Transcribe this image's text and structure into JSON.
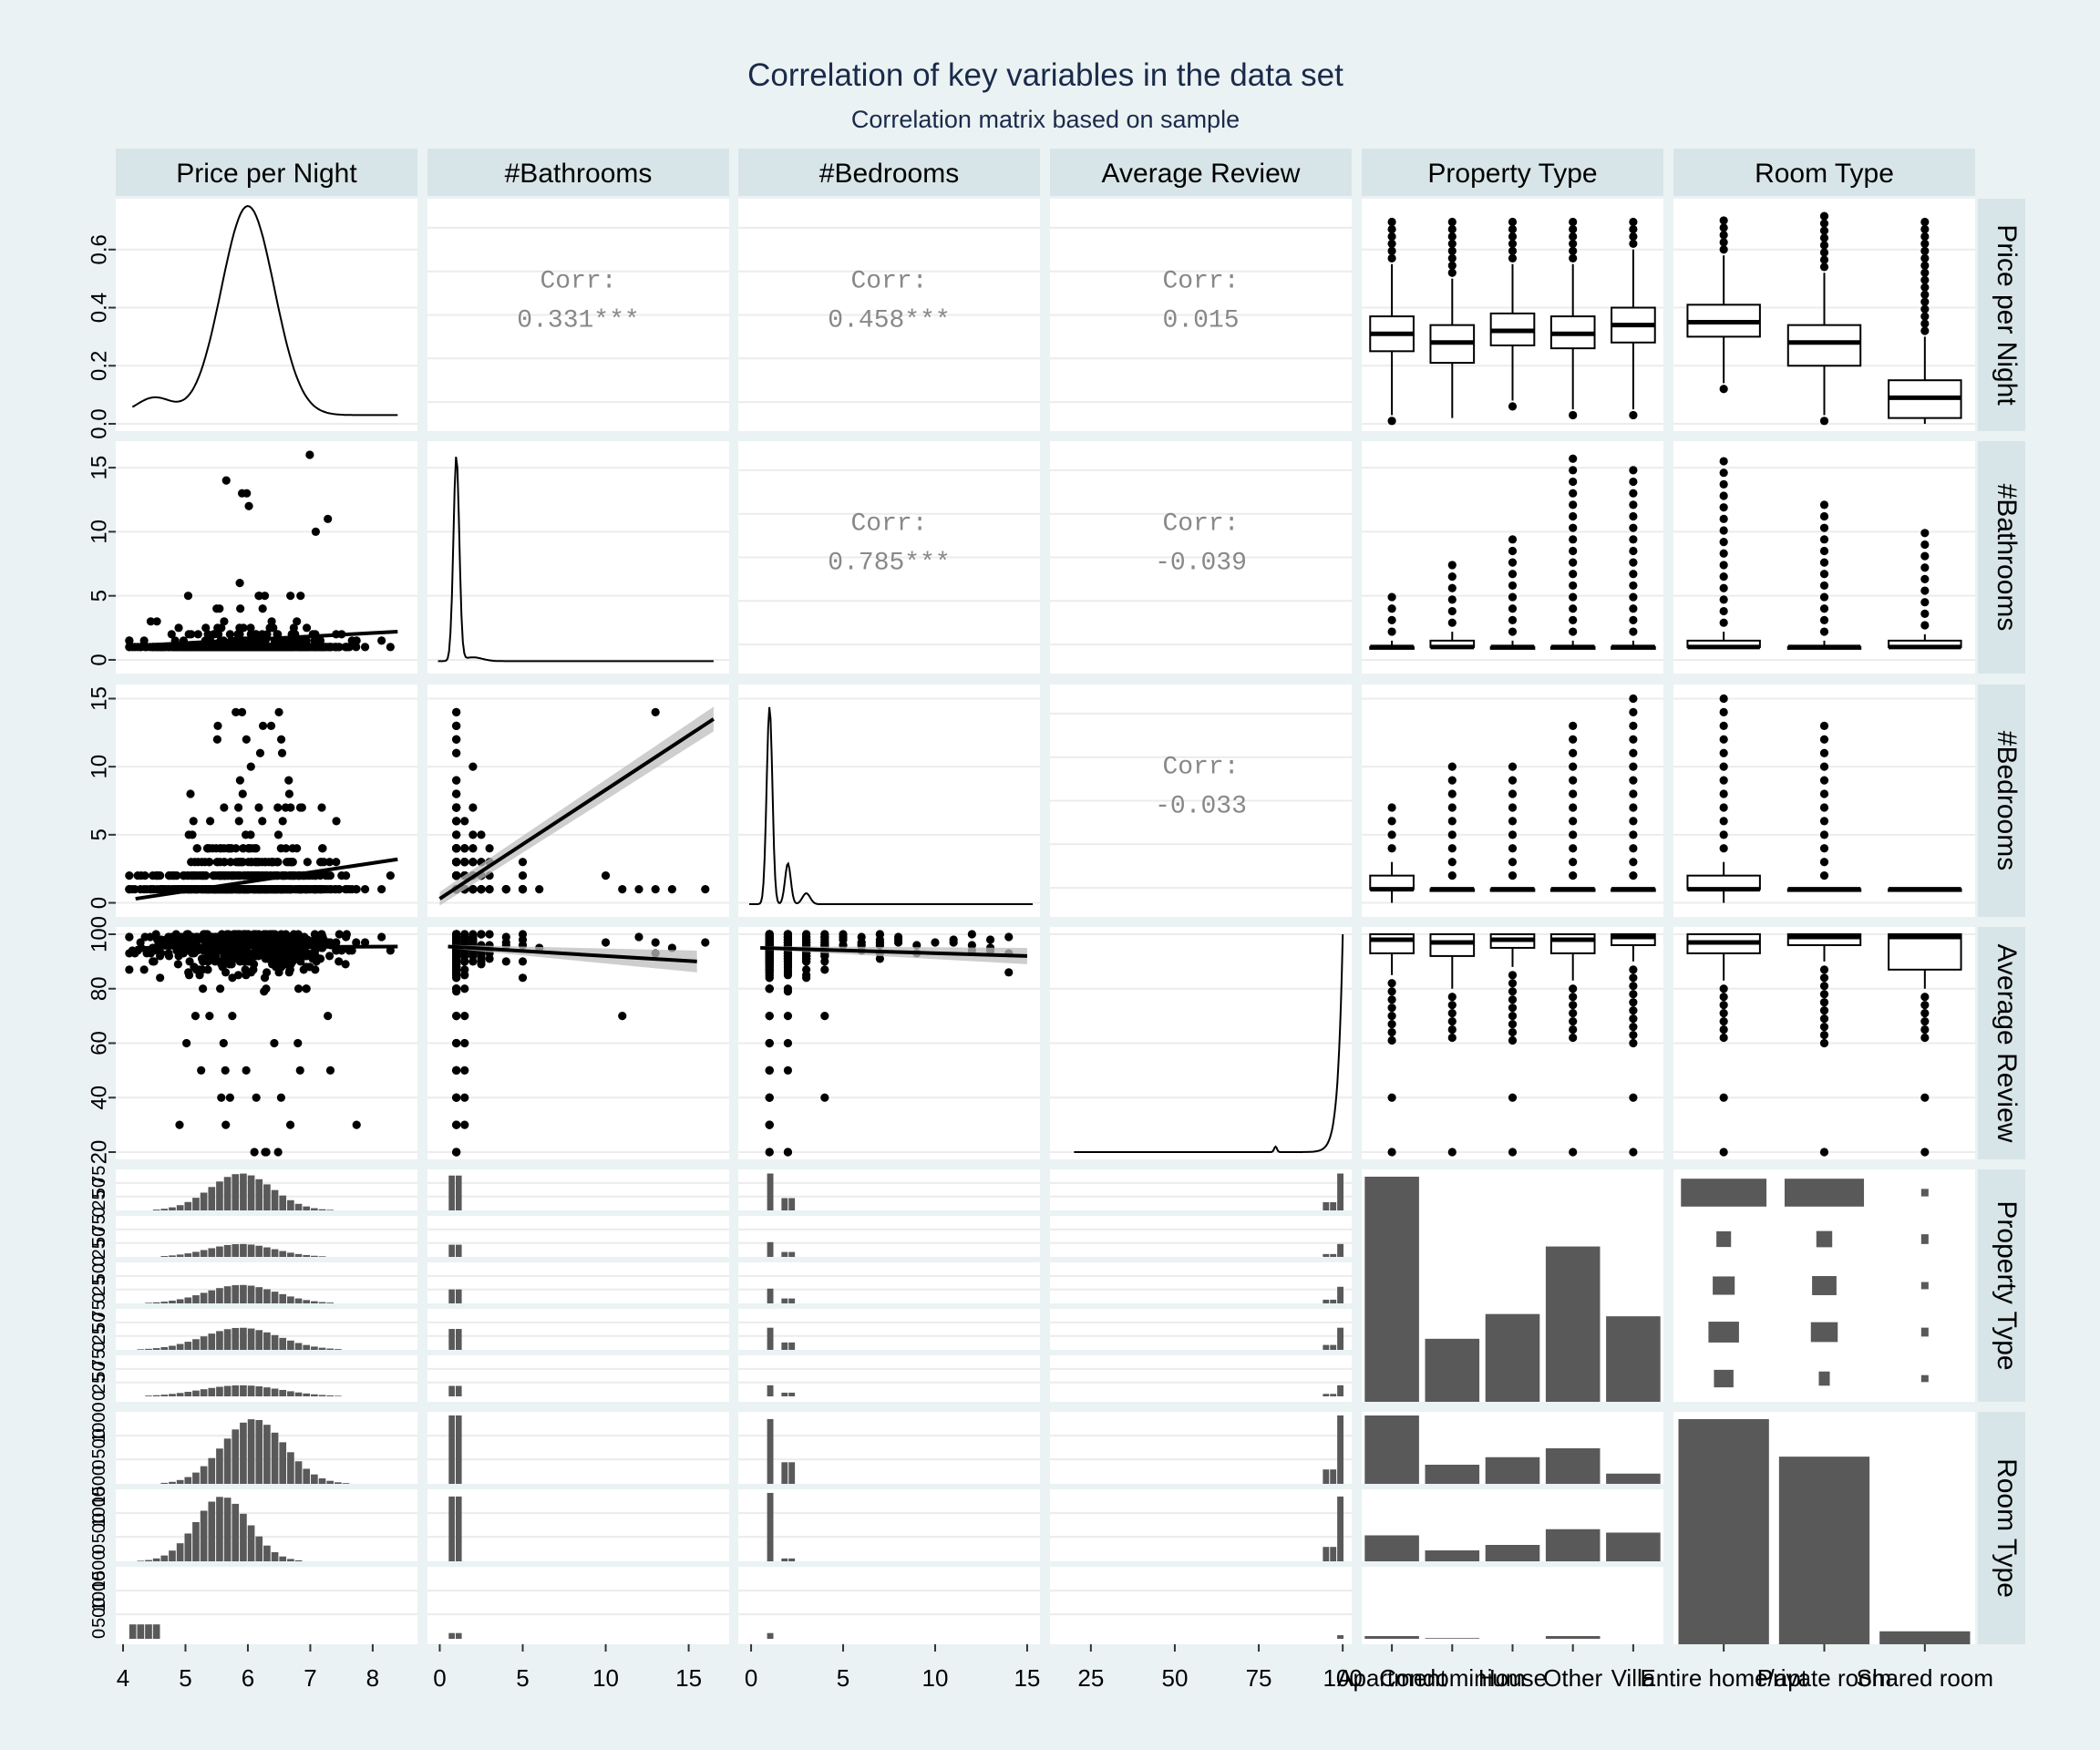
{
  "chart_data": {
    "type": "scatter-matrix",
    "title": "Correlation of key variables in the data set",
    "subtitle": "Correlation matrix based on sample",
    "variables": [
      "Price per Night",
      "#Bathrooms",
      "#Bedrooms",
      "Average Review",
      "Property Type",
      "Room Type"
    ],
    "correlation_label": "Corr:",
    "correlations": [
      {
        "row": 0,
        "col": 1,
        "value": "0.331***"
      },
      {
        "row": 0,
        "col": 2,
        "value": "0.458***"
      },
      {
        "row": 0,
        "col": 3,
        "value": "0.015"
      },
      {
        "row": 1,
        "col": 2,
        "value": "0.785***"
      },
      {
        "row": 1,
        "col": 3,
        "value": "-0.039"
      },
      {
        "row": 2,
        "col": 3,
        "value": "-0.033"
      }
    ],
    "x_axis_ticks": [
      [
        "4",
        "5",
        "6",
        "7",
        "8"
      ],
      [
        "0",
        "5",
        "10",
        "15"
      ],
      [
        "0",
        "5",
        "10",
        "15"
      ],
      [
        "25",
        "50",
        "75",
        "100"
      ],
      [
        "Apartment",
        "Condominium",
        "House",
        "Other",
        "Villa"
      ],
      [
        "Entire home/apt",
        "Private room",
        "Shared room"
      ]
    ],
    "y_axis_ticks": [
      [
        "0.0",
        "0.2",
        "0.4",
        "0.6"
      ],
      [
        "0",
        "5",
        "10",
        "15"
      ],
      [
        "0",
        "5",
        "10",
        "15"
      ],
      [
        "20",
        "40",
        "60",
        "80",
        "100"
      ],
      [
        "0",
        "25",
        "50",
        "75",
        "0",
        "25",
        "50",
        "75",
        "0",
        "25",
        "50",
        "0",
        "25",
        "50",
        "75",
        "0",
        "25",
        "50",
        "75"
      ],
      [
        "0",
        "500",
        "1000",
        "1500",
        "0",
        "500",
        "1000",
        "1500",
        "0",
        "500",
        "1000"
      ]
    ],
    "x_range": {
      "price": [
        4,
        8.6
      ],
      "bathrooms": [
        -0.3,
        17
      ],
      "bedrooms": [
        -0.3,
        15.3
      ],
      "review": [
        15,
        100.5
      ]
    },
    "y_range": {
      "price_density": [
        0,
        0.75
      ],
      "bathrooms": [
        -0.5,
        16.5
      ],
      "bedrooms": [
        -0.5,
        15.5
      ],
      "review": [
        20,
        100
      ]
    },
    "property_type_counts": [
      1000,
      280,
      390,
      690,
      380
    ],
    "room_type_counts": [
      1650,
      1375,
      95
    ],
    "property_by_room_counts": [
      [
        700,
        650,
        10
      ],
      [
        120,
        130,
        28
      ],
      [
        180,
        200,
        8
      ],
      [
        250,
        220,
        20
      ],
      [
        160,
        90,
        7
      ]
    ],
    "price_box_by_property": [
      {
        "q1": 0.25,
        "med": 0.31,
        "q3": 0.37,
        "lw": 0.03,
        "uw": 0.55
      },
      {
        "q1": 0.21,
        "med": 0.28,
        "q3": 0.34,
        "lw": 0.02,
        "uw": 0.5
      },
      {
        "q1": 0.27,
        "med": 0.32,
        "q3": 0.38,
        "lw": 0.08,
        "uw": 0.55
      },
      {
        "q1": 0.26,
        "med": 0.31,
        "q3": 0.37,
        "lw": 0.05,
        "uw": 0.55
      },
      {
        "q1": 0.28,
        "med": 0.34,
        "q3": 0.4,
        "lw": 0.05,
        "uw": 0.6
      }
    ],
    "price_box_by_room": [
      {
        "q1": 0.3,
        "med": 0.35,
        "q3": 0.41,
        "lw": 0.14,
        "uw": 0.58
      },
      {
        "q1": 0.2,
        "med": 0.28,
        "q3": 0.34,
        "lw": 0.03,
        "uw": 0.52
      },
      {
        "q1": 0.02,
        "med": 0.09,
        "q3": 0.15,
        "lw": 0.0,
        "uw": 0.3
      }
    ],
    "bath_box_by_property": [
      {
        "q1": 1,
        "med": 1,
        "q3": 1,
        "lw": 1,
        "uw": 1.5
      },
      {
        "q1": 1,
        "med": 1,
        "q3": 1.5,
        "lw": 1,
        "uw": 2.2
      },
      {
        "q1": 1,
        "med": 1,
        "q3": 1,
        "lw": 1,
        "uw": 1.5
      },
      {
        "q1": 1,
        "med": 1,
        "q3": 1,
        "lw": 1,
        "uw": 1.5
      },
      {
        "q1": 1,
        "med": 1,
        "q3": 1,
        "lw": 1,
        "uw": 1.5
      }
    ],
    "bath_box_by_room": [
      {
        "q1": 1,
        "med": 1,
        "q3": 1.5,
        "lw": 1,
        "uw": 2.2
      },
      {
        "q1": 1,
        "med": 1,
        "q3": 1,
        "lw": 1,
        "uw": 1.5
      },
      {
        "q1": 1,
        "med": 1,
        "q3": 1.5,
        "lw": 1,
        "uw": 2
      }
    ],
    "bed_box_by_property": [
      {
        "q1": 1,
        "med": 1,
        "q3": 2,
        "lw": 0,
        "uw": 3
      },
      {
        "q1": 1,
        "med": 1,
        "q3": 1,
        "lw": 1,
        "uw": 1
      },
      {
        "q1": 1,
        "med": 1,
        "q3": 1,
        "lw": 1,
        "uw": 1
      },
      {
        "q1": 1,
        "med": 1,
        "q3": 1,
        "lw": 1,
        "uw": 1
      },
      {
        "q1": 1,
        "med": 1,
        "q3": 1,
        "lw": 1,
        "uw": 1
      }
    ],
    "bed_box_by_room": [
      {
        "q1": 1,
        "med": 1,
        "q3": 2,
        "lw": 0,
        "uw": 3
      },
      {
        "q1": 1,
        "med": 1,
        "q3": 1,
        "lw": 1,
        "uw": 1
      },
      {
        "q1": 1,
        "med": 1,
        "q3": 1,
        "lw": 1,
        "uw": 1
      }
    ],
    "review_box_by_property": [
      {
        "q1": 93,
        "med": 98,
        "q3": 100,
        "lw": 85,
        "uw": 100
      },
      {
        "q1": 92,
        "med": 97,
        "q3": 100,
        "lw": 80,
        "uw": 100
      },
      {
        "q1": 95,
        "med": 98,
        "q3": 100,
        "lw": 88,
        "uw": 100
      },
      {
        "q1": 93,
        "med": 98,
        "q3": 100,
        "lw": 83,
        "uw": 100
      },
      {
        "q1": 96,
        "med": 99,
        "q3": 100,
        "lw": 90,
        "uw": 100
      }
    ],
    "review_box_by_room": [
      {
        "q1": 93,
        "med": 97,
        "q3": 100,
        "lw": 83,
        "uw": 100
      },
      {
        "q1": 96,
        "med": 99,
        "q3": 100,
        "lw": 90,
        "uw": 100
      },
      {
        "q1": 87,
        "med": 99,
        "q3": 100,
        "lw": 80,
        "uw": 100
      }
    ],
    "grid": true,
    "legend": "none"
  }
}
